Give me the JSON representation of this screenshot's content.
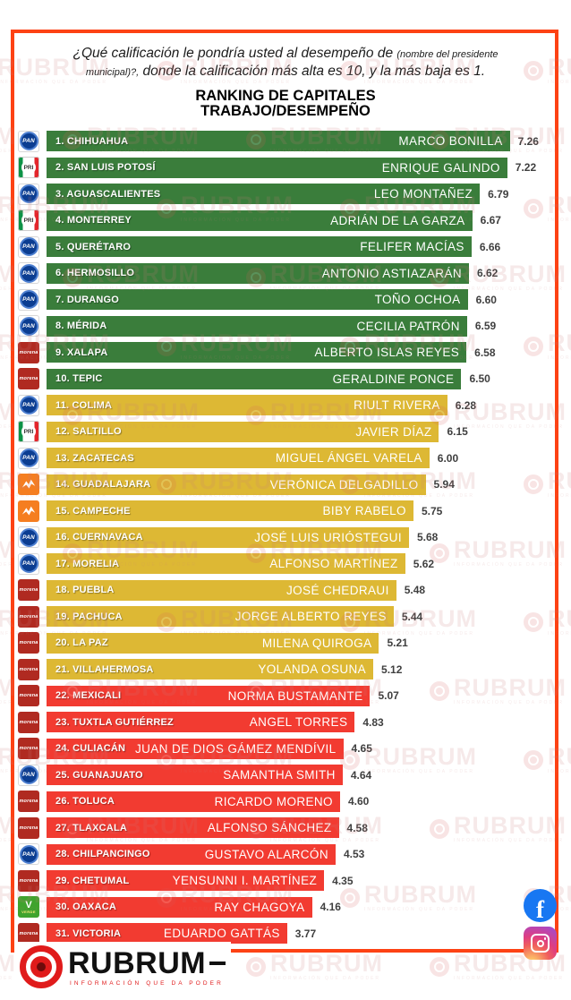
{
  "header": {
    "question_part1": "¿Qué calificación le pondría usted al desempeño de ",
    "question_part1_small": "(nombre del presidente",
    "question_part2_small": "municipal)?,",
    "question_part2": " donde la calificación más alta es 10, y la más baja es 1.",
    "title_line1": "RANKING DE CAPITALES",
    "title_line2": "TRABAJO/DESEMPEÑO"
  },
  "chart_data": {
    "type": "bar",
    "orientation": "horizontal",
    "title": "RANKING DE CAPITALES TRABAJO/DESEMPEÑO",
    "score_scale": {
      "min": 1,
      "max": 10
    },
    "zone_colors": {
      "green": "#3a7d3b",
      "yellow": "#ddb834",
      "red": "#f23b31"
    },
    "rows": [
      {
        "rank": 1,
        "city": "CHIHUAHUA",
        "mayor": "MARCO BONILLA",
        "score": "7.26",
        "party": "PAN",
        "zone": "green"
      },
      {
        "rank": 2,
        "city": "SAN LUIS POTOSÍ",
        "mayor": "ENRIQUE GALINDO",
        "score": "7.22",
        "party": "PRI",
        "zone": "green"
      },
      {
        "rank": 3,
        "city": "AGUASCALIENTES",
        "mayor": "LEO MONTAÑEZ",
        "score": "6.79",
        "party": "PAN",
        "zone": "green"
      },
      {
        "rank": 4,
        "city": "MONTERREY",
        "mayor": "ADRIÁN DE LA GARZA",
        "score": "6.67",
        "party": "PRI",
        "zone": "green"
      },
      {
        "rank": 5,
        "city": "QUERÉTARO",
        "mayor": "FELIFER MACÍAS",
        "score": "6.66",
        "party": "PAN",
        "zone": "green"
      },
      {
        "rank": 6,
        "city": "HERMOSILLO",
        "mayor": "ANTONIO ASTIAZARÁN",
        "score": "6.62",
        "party": "PAN",
        "zone": "green"
      },
      {
        "rank": 7,
        "city": "DURANGO",
        "mayor": "TOÑO OCHOA",
        "score": "6.60",
        "party": "PAN",
        "zone": "green"
      },
      {
        "rank": 8,
        "city": "MÉRIDA",
        "mayor": "CECILIA PATRÓN",
        "score": "6.59",
        "party": "PAN",
        "zone": "green"
      },
      {
        "rank": 9,
        "city": "XALAPA",
        "mayor": "ALBERTO ISLAS REYES",
        "score": "6.58",
        "party": "MORENA",
        "zone": "green"
      },
      {
        "rank": 10,
        "city": "TEPIC",
        "mayor": "GERALDINE PONCE",
        "score": "6.50",
        "party": "MORENA",
        "zone": "green"
      },
      {
        "rank": 11,
        "city": "COLIMA",
        "mayor": "RIULT RIVERA",
        "score": "6.28",
        "party": "PAN",
        "zone": "yellow"
      },
      {
        "rank": 12,
        "city": "SALTILLO",
        "mayor": "JAVIER DÍAZ",
        "score": "6.15",
        "party": "PRI",
        "zone": "yellow"
      },
      {
        "rank": 13,
        "city": "ZACATECAS",
        "mayor": "MIGUEL ÁNGEL VARELA",
        "score": "6.00",
        "party": "PAN",
        "zone": "yellow"
      },
      {
        "rank": 14,
        "city": "GUADALAJARA",
        "mayor": "VERÓNICA DELGADILLO",
        "score": "5.94",
        "party": "MC",
        "zone": "yellow"
      },
      {
        "rank": 15,
        "city": "CAMPECHE",
        "mayor": "BIBY RABELO",
        "score": "5.75",
        "party": "MC",
        "zone": "yellow"
      },
      {
        "rank": 16,
        "city": "CUERNAVACA",
        "mayor": "JOSÉ LUIS URIÓSTEGUI",
        "score": "5.68",
        "party": "PAN",
        "zone": "yellow"
      },
      {
        "rank": 17,
        "city": "MORELIA",
        "mayor": "ALFONSO MARTÍNEZ",
        "score": "5.62",
        "party": "PAN",
        "zone": "yellow"
      },
      {
        "rank": 18,
        "city": "PUEBLA",
        "mayor": "JOSÉ CHEDRAUI",
        "score": "5.48",
        "party": "MORENA",
        "zone": "yellow"
      },
      {
        "rank": 19,
        "city": "PACHUCA",
        "mayor": "JORGE ALBERTO REYES",
        "score": "5.44",
        "party": "MORENA",
        "zone": "yellow"
      },
      {
        "rank": 20,
        "city": "LA PAZ",
        "mayor": "MILENA QUIROGA",
        "score": "5.21",
        "party": "MORENA",
        "zone": "yellow"
      },
      {
        "rank": 21,
        "city": "VILLAHERMOSA",
        "mayor": "YOLANDA OSUNA",
        "score": "5.12",
        "party": "MORENA",
        "zone": "yellow"
      },
      {
        "rank": 22,
        "city": "MEXICALI",
        "mayor": "NORMA BUSTAMANTE",
        "score": "5.07",
        "party": "MORENA",
        "zone": "red"
      },
      {
        "rank": 23,
        "city": "TUXTLA GUTIÉRREZ",
        "mayor": "ANGEL TORRES",
        "score": "4.83",
        "party": "MORENA",
        "zone": "red"
      },
      {
        "rank": 24,
        "city": "CULIACÁN",
        "mayor": "JUAN DE DIOS GÁMEZ MENDÍVIL",
        "score": "4.65",
        "party": "MORENA",
        "zone": "red"
      },
      {
        "rank": 25,
        "city": "GUANAJUATO",
        "mayor": "SAMANTHA SMITH",
        "score": "4.64",
        "party": "PAN",
        "zone": "red"
      },
      {
        "rank": 26,
        "city": "TOLUCA",
        "mayor": "RICARDO MORENO",
        "score": "4.60",
        "party": "MORENA",
        "zone": "red"
      },
      {
        "rank": 27,
        "city": "TLAXCALA",
        "mayor": "ALFONSO SÁNCHEZ",
        "score": "4.58",
        "party": "MORENA",
        "zone": "red"
      },
      {
        "rank": 28,
        "city": "CHILPANCINGO",
        "mayor": "GUSTAVO ALARCÓN",
        "score": "4.53",
        "party": "PAN",
        "zone": "red"
      },
      {
        "rank": 29,
        "city": "CHETUMAL",
        "mayor": "YENSUNNI I. MARTÍNEZ",
        "score": "4.35",
        "party": "MORENA",
        "zone": "red"
      },
      {
        "rank": 30,
        "city": "OAXACA",
        "mayor": "RAY CHAGOYA",
        "score": "4.16",
        "party": "VERDE",
        "zone": "red"
      },
      {
        "rank": 31,
        "city": "VICTORIA",
        "mayor": "EDUARDO GATTÁS",
        "score": "3.77",
        "party": "MORENA",
        "zone": "red"
      }
    ]
  },
  "watermark": {
    "text": "RUBRUM",
    "tagline": "INFORMACIÓN QUE DA PODER"
  },
  "footer": {
    "brand": "RUBRUM",
    "tagline": "INFORMACIÓN QUE DA PODER"
  },
  "party_labels": {
    "PAN": "PAN",
    "PRI": "PRI",
    "MORENA": "morena",
    "MC": "MC",
    "VERDE": "VERDE"
  }
}
